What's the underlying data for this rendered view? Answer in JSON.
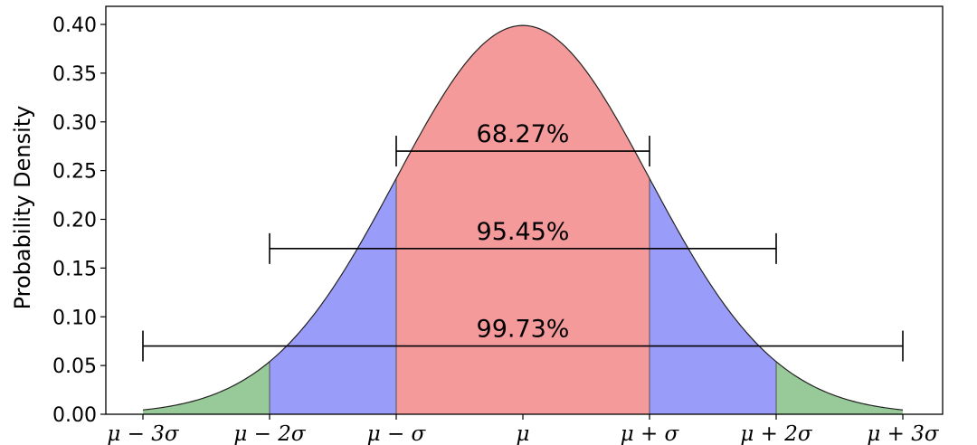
{
  "chart_data": {
    "type": "area",
    "title": "",
    "xlabel": "",
    "ylabel": "Probability Density",
    "xlim": [
      -3,
      3
    ],
    "ylim": [
      0,
      0.4
    ],
    "grid": false,
    "x_ticks": [
      {
        "value": -3,
        "label": "μ − 3σ"
      },
      {
        "value": -2,
        "label": "μ − 2σ"
      },
      {
        "value": -1,
        "label": "μ − σ"
      },
      {
        "value": 0,
        "label": "μ"
      },
      {
        "value": 1,
        "label": "μ + σ"
      },
      {
        "value": 2,
        "label": "μ + 2σ"
      },
      {
        "value": 3,
        "label": "μ + 3σ"
      }
    ],
    "y_ticks": [
      {
        "value": 0.0,
        "label": "0.00"
      },
      {
        "value": 0.05,
        "label": "0.05"
      },
      {
        "value": 0.1,
        "label": "0.10"
      },
      {
        "value": 0.15,
        "label": "0.15"
      },
      {
        "value": 0.2,
        "label": "0.20"
      },
      {
        "value": 0.25,
        "label": "0.25"
      },
      {
        "value": 0.3,
        "label": "0.30"
      },
      {
        "value": 0.35,
        "label": "0.35"
      },
      {
        "value": 0.4,
        "label": "0.40"
      }
    ],
    "curve": {
      "x": [
        -3.0,
        -2.5,
        -2.0,
        -1.5,
        -1.0,
        -0.5,
        0.0,
        0.5,
        1.0,
        1.5,
        2.0,
        2.5,
        3.0
      ],
      "y": [
        0.0044,
        0.0175,
        0.054,
        0.1295,
        0.242,
        0.3521,
        0.3989,
        0.3521,
        0.242,
        0.1295,
        0.054,
        0.0175,
        0.0044
      ]
    },
    "regions": [
      {
        "from": -3,
        "to": -2,
        "color": "#98c998"
      },
      {
        "from": -2,
        "to": -1,
        "color": "#9a9cfa"
      },
      {
        "from": -1,
        "to": 1,
        "color": "#f49a9a"
      },
      {
        "from": 1,
        "to": 2,
        "color": "#9a9cfa"
      },
      {
        "from": 2,
        "to": 3,
        "color": "#98c998"
      }
    ],
    "intervals": [
      {
        "label": "68.27%",
        "from": -1,
        "to": 1,
        "y": 0.27
      },
      {
        "label": "95.45%",
        "from": -2,
        "to": 2,
        "y": 0.17
      },
      {
        "label": "99.73%",
        "from": -3,
        "to": 3,
        "y": 0.07
      }
    ]
  }
}
